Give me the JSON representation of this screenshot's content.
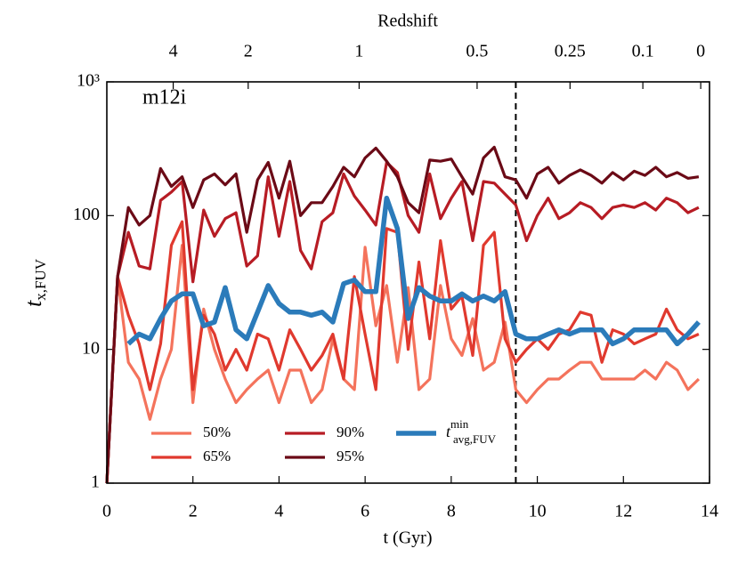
{
  "chart_data": {
    "type": "line",
    "annotation": "m12i",
    "xlabel": "t (Gyr)",
    "ylabel": "t",
    "ylabel_sub": "x,FUV",
    "x2label": "Redshift",
    "xlim": [
      0,
      14
    ],
    "xticks": [
      0,
      2,
      4,
      6,
      8,
      10,
      12,
      14
    ],
    "ylim": [
      1,
      1000
    ],
    "ylog": true,
    "yticks": [
      1,
      10,
      100,
      {
        "value": 1000,
        "label": "10³"
      }
    ],
    "x2ticks": [
      4,
      2,
      1,
      0.5,
      0.25,
      0.1,
      0
    ],
    "vlines": [
      9.5
    ],
    "x": [
      0,
      0.25,
      0.5,
      0.75,
      1,
      1.25,
      1.5,
      1.75,
      2,
      2.25,
      2.5,
      2.75,
      3,
      3.25,
      3.5,
      3.75,
      4,
      4.25,
      4.5,
      4.75,
      5,
      5.25,
      5.5,
      5.75,
      6,
      6.25,
      6.5,
      6.75,
      7,
      7.25,
      7.5,
      7.75,
      8,
      8.25,
      8.5,
      8.75,
      9,
      9.25,
      9.5,
      9.75,
      10,
      10.25,
      10.5,
      10.75,
      11,
      11.25,
      11.5,
      11.75,
      12,
      12.25,
      12.5,
      12.75,
      13,
      13.25,
      13.5,
      13.75
    ],
    "series": [
      {
        "name": "50%",
        "color": "#f4735c",
        "values": [
          1,
          35,
          8,
          6,
          3,
          6,
          10,
          60,
          4,
          20,
          10,
          6,
          4,
          5,
          6,
          7,
          4,
          7,
          7,
          4,
          5,
          12,
          6,
          5,
          58,
          15,
          30,
          8,
          29,
          5,
          6,
          30,
          12,
          9,
          17,
          7,
          8,
          16,
          5,
          4,
          5,
          6,
          6,
          7,
          8,
          8,
          6,
          6,
          6,
          6,
          7,
          6,
          8,
          7,
          5,
          6
        ]
      },
      {
        "name": "65%",
        "color": "#e0392e",
        "values": [
          1,
          35,
          18,
          11,
          5,
          11,
          60,
          90,
          5,
          18,
          13,
          7,
          10,
          7,
          13,
          12,
          7,
          14,
          10,
          7,
          9,
          13,
          6,
          35,
          13,
          5,
          80,
          75,
          10,
          45,
          12,
          65,
          20,
          25,
          9,
          60,
          75,
          12,
          8,
          10,
          12,
          10,
          13,
          14,
          19,
          18,
          8,
          14,
          13,
          11,
          12,
          13,
          20,
          14,
          12,
          13
        ]
      },
      {
        "name": "90%",
        "color": "#b71c24",
        "values": [
          1,
          35,
          75,
          42,
          40,
          130,
          150,
          180,
          32,
          110,
          70,
          95,
          105,
          42,
          50,
          195,
          70,
          180,
          55,
          40,
          90,
          105,
          205,
          140,
          110,
          85,
          250,
          210,
          100,
          75,
          205,
          95,
          135,
          180,
          65,
          180,
          175,
          145,
          120,
          65,
          100,
          135,
          95,
          105,
          125,
          115,
          95,
          115,
          120,
          115,
          125,
          110,
          135,
          125,
          105,
          115
        ]
      },
      {
        "name": "95%",
        "color": "#6b0a16",
        "values": [
          1,
          35,
          115,
          85,
          100,
          225,
          165,
          195,
          115,
          185,
          205,
          170,
          205,
          75,
          185,
          250,
          135,
          255,
          100,
          125,
          125,
          165,
          230,
          195,
          270,
          320,
          255,
          195,
          125,
          105,
          260,
          255,
          265,
          195,
          145,
          270,
          325,
          195,
          185,
          135,
          205,
          230,
          175,
          200,
          220,
          200,
          175,
          210,
          185,
          215,
          200,
          230,
          195,
          210,
          190,
          195
        ]
      },
      {
        "name": "t",
        "name_sub": "avg,FUV",
        "name_sup": "min",
        "color": "#2b7bba",
        "values": [
          null,
          null,
          11,
          13,
          12,
          17,
          23,
          26,
          26,
          15,
          16,
          29,
          14,
          12,
          19,
          30,
          22,
          19,
          19,
          18,
          19,
          16,
          31,
          33,
          27,
          27,
          135,
          80,
          17,
          29,
          25,
          23,
          23,
          26,
          23,
          25,
          23,
          27,
          13,
          12,
          12,
          13,
          14,
          13,
          14,
          14,
          14,
          11,
          12,
          14,
          14,
          14,
          14,
          11,
          13,
          16
        ]
      }
    ]
  }
}
